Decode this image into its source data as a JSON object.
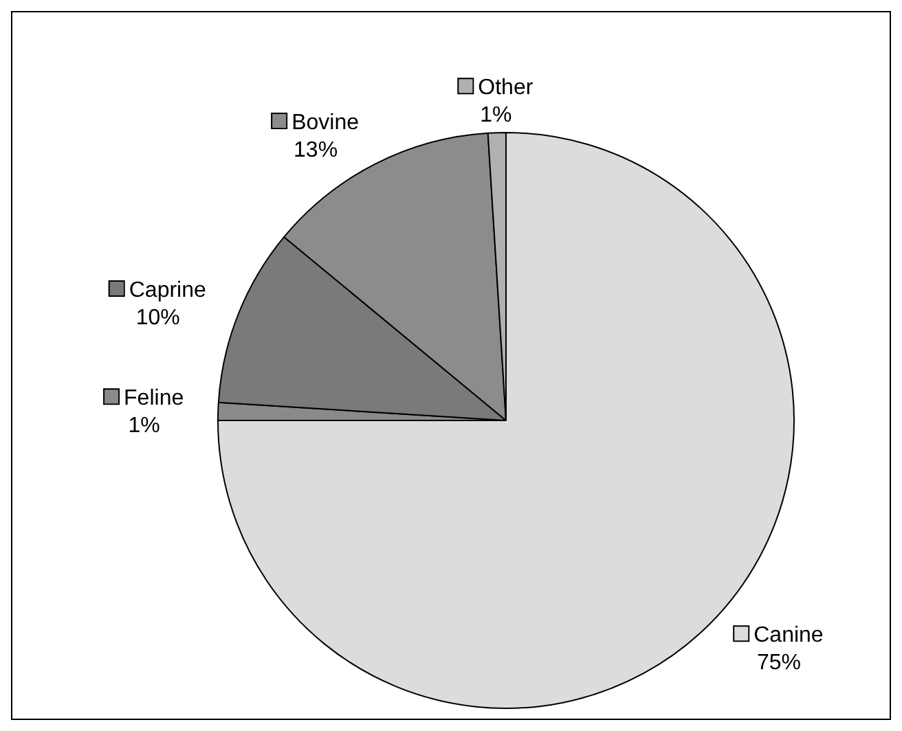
{
  "chart_data": {
    "type": "pie",
    "categories": [
      "Canine",
      "Feline",
      "Caprine",
      "Bovine",
      "Other"
    ],
    "values": [
      75,
      1,
      10,
      13,
      1
    ],
    "value_labels": [
      "75%",
      "1%",
      "10%",
      "13%",
      "1%"
    ],
    "colors": [
      "#dcdcdc",
      "#8a8a8a",
      "#7a7a7a",
      "#8c8c8c",
      "#b0b0b0"
    ],
    "legend": "left"
  }
}
